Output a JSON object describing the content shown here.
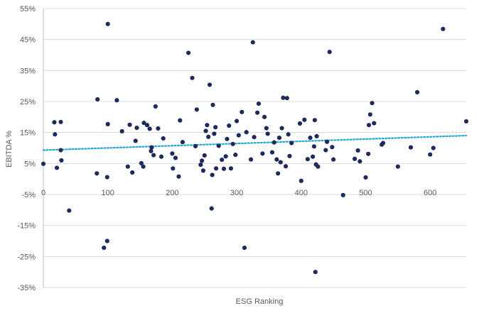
{
  "chart_data": {
    "type": "scatter",
    "title": "",
    "xlabel": "ESG Ranking",
    "ylabel": "EBITDA %",
    "xlim": [
      0,
      656
    ],
    "ylim": [
      -35,
      55
    ],
    "x_ticks": [
      0,
      100,
      200,
      300,
      400,
      500,
      600
    ],
    "y_ticks": [
      -35,
      -25,
      -15,
      -5,
      5,
      15,
      25,
      35,
      45,
      55
    ],
    "y_tick_suffix": "%",
    "grid": "horizontal",
    "legend": "none",
    "colors": {
      "points": "#1f2a5c",
      "trendline": "#21a6d8",
      "grid": "#d9d9d9",
      "axis": "#bfbfbf"
    },
    "trendline": {
      "style": "dotted",
      "x": [
        0,
        656
      ],
      "y": [
        9.3,
        14.0
      ]
    },
    "points": [
      {
        "x": 0,
        "y": 4.9
      },
      {
        "x": 17,
        "y": 18.3
      },
      {
        "x": 18,
        "y": 14.4
      },
      {
        "x": 21,
        "y": 3.6
      },
      {
        "x": 27,
        "y": 18.4
      },
      {
        "x": 27,
        "y": 9.3
      },
      {
        "x": 28,
        "y": 6.0
      },
      {
        "x": 40,
        "y": -10.2
      },
      {
        "x": 83,
        "y": 1.8
      },
      {
        "x": 84,
        "y": 25.7
      },
      {
        "x": 94,
        "y": -22.2
      },
      {
        "x": 99,
        "y": 0.6
      },
      {
        "x": 99,
        "y": -20.0
      },
      {
        "x": 100,
        "y": 50.0
      },
      {
        "x": 100,
        "y": 17.7
      },
      {
        "x": 114,
        "y": 25.4
      },
      {
        "x": 122,
        "y": 15.4
      },
      {
        "x": 131,
        "y": 4.0
      },
      {
        "x": 134,
        "y": 17.5
      },
      {
        "x": 138,
        "y": 2.1
      },
      {
        "x": 143,
        "y": 12.3
      },
      {
        "x": 145,
        "y": 16.5
      },
      {
        "x": 152,
        "y": 5.1
      },
      {
        "x": 155,
        "y": 4.0
      },
      {
        "x": 156,
        "y": 18.1
      },
      {
        "x": 161,
        "y": 17.4
      },
      {
        "x": 165,
        "y": 16.2
      },
      {
        "x": 167,
        "y": 9.0
      },
      {
        "x": 168,
        "y": 10.2
      },
      {
        "x": 171,
        "y": 7.7
      },
      {
        "x": 174,
        "y": 23.4
      },
      {
        "x": 178,
        "y": 16.3
      },
      {
        "x": 183,
        "y": 7.2
      },
      {
        "x": 186,
        "y": 13.1
      },
      {
        "x": 200,
        "y": 8.2
      },
      {
        "x": 201,
        "y": 3.4
      },
      {
        "x": 205,
        "y": 6.8
      },
      {
        "x": 210,
        "y": 0.8
      },
      {
        "x": 212,
        "y": 18.9
      },
      {
        "x": 216,
        "y": 11.9
      },
      {
        "x": 225,
        "y": 40.7
      },
      {
        "x": 231,
        "y": 32.6
      },
      {
        "x": 236,
        "y": 10.6
      },
      {
        "x": 238,
        "y": 22.4
      },
      {
        "x": 244,
        "y": 4.6
      },
      {
        "x": 246,
        "y": 5.9
      },
      {
        "x": 248,
        "y": 2.7
      },
      {
        "x": 250,
        "y": 7.6
      },
      {
        "x": 252,
        "y": 15.5
      },
      {
        "x": 254,
        "y": 17.4
      },
      {
        "x": 256,
        "y": 13.6
      },
      {
        "x": 258,
        "y": 30.4
      },
      {
        "x": 261,
        "y": -9.5
      },
      {
        "x": 262,
        "y": 1.3
      },
      {
        "x": 263,
        "y": 23.9
      },
      {
        "x": 265,
        "y": 14.6
      },
      {
        "x": 267,
        "y": 16.7
      },
      {
        "x": 268,
        "y": 3.4
      },
      {
        "x": 272,
        "y": 10.7
      },
      {
        "x": 277,
        "y": 6.2
      },
      {
        "x": 280,
        "y": 3.3
      },
      {
        "x": 283,
        "y": 7.3
      },
      {
        "x": 285,
        "y": 12.9
      },
      {
        "x": 288,
        "y": 17.2
      },
      {
        "x": 291,
        "y": 3.4
      },
      {
        "x": 294,
        "y": 11.3
      },
      {
        "x": 298,
        "y": 7.8
      },
      {
        "x": 300,
        "y": 18.7
      },
      {
        "x": 303,
        "y": 14.1
      },
      {
        "x": 308,
        "y": 21.6
      },
      {
        "x": 312,
        "y": -22.2
      },
      {
        "x": 315,
        "y": 15.1
      },
      {
        "x": 322,
        "y": 6.3
      },
      {
        "x": 325,
        "y": 44.1
      },
      {
        "x": 327,
        "y": 13.5
      },
      {
        "x": 332,
        "y": 21.4
      },
      {
        "x": 334,
        "y": 24.3
      },
      {
        "x": 340,
        "y": 8.2
      },
      {
        "x": 343,
        "y": 20.0
      },
      {
        "x": 346,
        "y": 16.4
      },
      {
        "x": 348,
        "y": 14.6
      },
      {
        "x": 355,
        "y": 8.6
      },
      {
        "x": 358,
        "y": 11.8
      },
      {
        "x": 362,
        "y": 6.3
      },
      {
        "x": 364,
        "y": 1.8
      },
      {
        "x": 366,
        "y": 13.3
      },
      {
        "x": 368,
        "y": 5.4
      },
      {
        "x": 370,
        "y": 16.4
      },
      {
        "x": 372,
        "y": 26.2
      },
      {
        "x": 376,
        "y": 4.1
      },
      {
        "x": 378,
        "y": 26.1
      },
      {
        "x": 380,
        "y": 14.4
      },
      {
        "x": 382,
        "y": 7.4
      },
      {
        "x": 385,
        "y": 11.6
      },
      {
        "x": 398,
        "y": 17.9
      },
      {
        "x": 400,
        "y": -0.6
      },
      {
        "x": 405,
        "y": 19.1
      },
      {
        "x": 410,
        "y": 6.4
      },
      {
        "x": 414,
        "y": 13.3
      },
      {
        "x": 418,
        "y": 7.2
      },
      {
        "x": 420,
        "y": 10.5
      },
      {
        "x": 421,
        "y": 19.0
      },
      {
        "x": 422,
        "y": -30.0
      },
      {
        "x": 423,
        "y": 4.7
      },
      {
        "x": 424,
        "y": 13.8
      },
      {
        "x": 426,
        "y": 4.0
      },
      {
        "x": 438,
        "y": 9.3
      },
      {
        "x": 440,
        "y": 12.0
      },
      {
        "x": 444,
        "y": 41.0
      },
      {
        "x": 448,
        "y": 10.3
      },
      {
        "x": 450,
        "y": 6.3
      },
      {
        "x": 465,
        "y": -5.2
      },
      {
        "x": 483,
        "y": 6.5
      },
      {
        "x": 488,
        "y": 9.2
      },
      {
        "x": 491,
        "y": 5.7
      },
      {
        "x": 500,
        "y": 0.5
      },
      {
        "x": 504,
        "y": 8.1
      },
      {
        "x": 505,
        "y": 17.4
      },
      {
        "x": 507,
        "y": 20.8
      },
      {
        "x": 510,
        "y": 24.5
      },
      {
        "x": 513,
        "y": 18.0
      },
      {
        "x": 525,
        "y": 11.1
      },
      {
        "x": 527,
        "y": 11.6
      },
      {
        "x": 550,
        "y": 4.0
      },
      {
        "x": 570,
        "y": 10.2
      },
      {
        "x": 580,
        "y": 28.0
      },
      {
        "x": 600,
        "y": 7.9
      },
      {
        "x": 605,
        "y": 10.0
      },
      {
        "x": 620,
        "y": 48.4
      },
      {
        "x": 656,
        "y": 18.6
      }
    ]
  }
}
